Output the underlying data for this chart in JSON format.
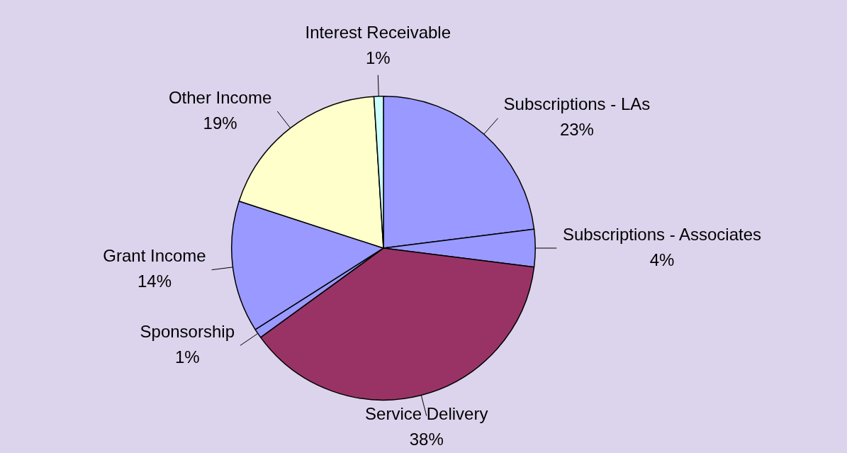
{
  "chart_data": {
    "type": "pie",
    "categories": [
      "Subscriptions - LAs",
      "Subscriptions - Associates",
      "Service Delivery",
      "Sponsorship",
      "Grant Income",
      "Other Income",
      "Interest Receivable"
    ],
    "values": [
      23,
      4,
      38,
      1,
      14,
      19,
      1
    ],
    "value_labels": [
      "23%",
      "4%",
      "38%",
      "1%",
      "14%",
      "19%",
      "1%"
    ],
    "colors": [
      "#9999ff",
      "#9999ff",
      "#993366",
      "#9999ff",
      "#9999ff",
      "#ffffcc",
      "#ccffff"
    ]
  }
}
